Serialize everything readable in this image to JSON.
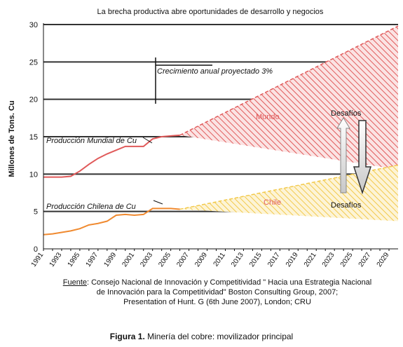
{
  "chart_data": {
    "type": "line",
    "title": "La brecha productiva abre oportunidades de desarrollo y negocios",
    "ylabel": "Millones de Tons. Cu",
    "xlabel": "",
    "ylim": [
      0,
      30
    ],
    "xlim": [
      1991,
      2030
    ],
    "grid": true,
    "y_ticks": [
      "0",
      "5",
      "10",
      "15",
      "20",
      "25",
      "30"
    ],
    "x_ticks": [
      "1991",
      "1993",
      "1995",
      "1997",
      "1999",
      "2001",
      "2003",
      "2005",
      "2007",
      "2009",
      "2011",
      "2013",
      "2015",
      "2017",
      "2019",
      "2021",
      "2023",
      "2025",
      "2027",
      "2029"
    ],
    "series": [
      {
        "name": "Producción Mundial de Cu",
        "color": "#e05a5a",
        "x": [
          1991,
          1992,
          1993,
          1994,
          1995,
          1996,
          1997,
          1998,
          1999,
          2000,
          2001,
          2002,
          2003,
          2004,
          2005,
          2006
        ],
        "values": [
          9.6,
          9.6,
          9.6,
          9.7,
          10.4,
          11.3,
          12.1,
          12.7,
          13.2,
          13.7,
          13.7,
          13.7,
          14.7,
          15.0,
          15.1,
          15.2
        ]
      },
      {
        "name": "Producción Chilena de Cu",
        "color": "#f08a30",
        "x": [
          1991,
          1992,
          1993,
          1994,
          1995,
          1996,
          1997,
          1998,
          1999,
          2000,
          2001,
          2002,
          2003,
          2004,
          2005,
          2006
        ],
        "values": [
          1.9,
          2.0,
          2.2,
          2.4,
          2.7,
          3.2,
          3.4,
          3.7,
          4.5,
          4.6,
          4.5,
          4.6,
          5.4,
          5.4,
          5.4,
          5.3
        ]
      }
    ],
    "projections": [
      {
        "name": "Mundo",
        "color": "#e05a5a",
        "x": [
          2006,
          2030
        ],
        "upper": [
          15.2,
          29.8
        ],
        "lower": [
          15.2,
          10.6
        ]
      },
      {
        "name": "Chile",
        "color": "#f2c94c",
        "x": [
          2006,
          2030
        ],
        "upper": [
          5.3,
          11.2
        ],
        "lower": [
          5.3,
          3.7
        ]
      }
    ],
    "annotations": {
      "growth_label": "Crecimiento anual proyectado 3%",
      "world_label": "Producción Mundial de Cu",
      "chile_label": "Producción Chilena de Cu",
      "desafios_top": "Desafíos",
      "desafios_bottom": "Desafíos",
      "mundo": "Mundo",
      "chile": "Chile"
    }
  },
  "source": {
    "label": "Fuente",
    "text_line1": ": Consejo Nacional de Innovación y Competitividad \" Hacia una Estrategia Nacional",
    "text_line2": "de Innovación para la Competitividad\" Boston Consulting Group, 2007;",
    "text_line3": "Presentation of Hunt. G (6th June 2007), London; CRU"
  },
  "caption": {
    "figure_label": "Figura 1.",
    "text": " Minería del cobre: movilizador principal"
  }
}
